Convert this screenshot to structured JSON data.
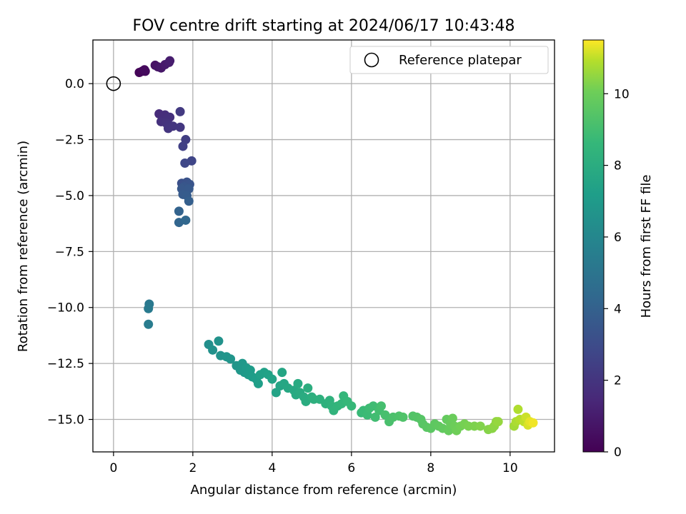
{
  "chart_data": {
    "type": "scatter",
    "title": "FOV centre drift starting at 2024/06/17 10:43:48",
    "xlabel": "Angular distance from reference (arcmin)",
    "ylabel": "Rotation from reference (arcmin)",
    "xlim": [
      -0.52,
      11.12
    ],
    "ylim": [
      -16.45,
      1.95
    ],
    "xticks": [
      0,
      2,
      4,
      6,
      8,
      10
    ],
    "xtick_labels": [
      "0",
      "2",
      "4",
      "6",
      "8",
      "10"
    ],
    "yticks": [
      0,
      -2.5,
      -5,
      -7.5,
      -10,
      -12.5,
      -15
    ],
    "ytick_labels": [
      "0.0",
      "−2.5",
      "−5.0",
      "−7.5",
      "−10.0",
      "−12.5",
      "−15.0"
    ],
    "grid": true,
    "legend": {
      "position": "top-right",
      "entries": [
        {
          "label": "Reference platepar",
          "marker": "open-circle"
        }
      ]
    },
    "reference_point": {
      "x": 0,
      "y": 0
    },
    "colorbar": {
      "label": "Hours from first FF file",
      "colormap": "viridis",
      "range": [
        0,
        11.5
      ],
      "ticks": [
        0,
        2,
        4,
        6,
        8,
        10
      ],
      "tick_labels": [
        "0",
        "2",
        "4",
        "6",
        "8",
        "10"
      ]
    },
    "points": [
      {
        "x": 0.65,
        "y": 0.5,
        "t": 0.1
      },
      {
        "x": 0.72,
        "y": 0.55,
        "t": 0.2
      },
      {
        "x": 0.8,
        "y": 0.55,
        "t": 0.3
      },
      {
        "x": 0.78,
        "y": 0.62,
        "t": 0.35
      },
      {
        "x": 1.05,
        "y": 0.82,
        "t": 0.6
      },
      {
        "x": 1.12,
        "y": 0.75,
        "t": 0.7
      },
      {
        "x": 1.2,
        "y": 0.7,
        "t": 0.8
      },
      {
        "x": 1.3,
        "y": 0.85,
        "t": 0.9
      },
      {
        "x": 1.4,
        "y": 0.95,
        "t": 1.0
      },
      {
        "x": 1.42,
        "y": 1.02,
        "t": 1.05
      },
      {
        "x": 1.15,
        "y": -1.35,
        "t": 1.6
      },
      {
        "x": 1.25,
        "y": -1.45,
        "t": 1.65
      },
      {
        "x": 1.3,
        "y": -1.4,
        "t": 1.7
      },
      {
        "x": 1.35,
        "y": -1.55,
        "t": 1.75
      },
      {
        "x": 1.42,
        "y": -1.5,
        "t": 1.8
      },
      {
        "x": 1.2,
        "y": -1.7,
        "t": 1.85
      },
      {
        "x": 1.32,
        "y": -1.75,
        "t": 1.9
      },
      {
        "x": 1.4,
        "y": -1.85,
        "t": 1.95
      },
      {
        "x": 1.38,
        "y": -2.0,
        "t": 2.0
      },
      {
        "x": 1.5,
        "y": -1.9,
        "t": 2.05
      },
      {
        "x": 1.68,
        "y": -1.95,
        "t": 2.1
      },
      {
        "x": 1.68,
        "y": -1.25,
        "t": 2.2
      },
      {
        "x": 1.82,
        "y": -2.5,
        "t": 2.4
      },
      {
        "x": 1.75,
        "y": -2.8,
        "t": 2.5
      },
      {
        "x": 1.97,
        "y": -3.45,
        "t": 2.7
      },
      {
        "x": 1.8,
        "y": -3.55,
        "t": 2.8
      },
      {
        "x": 1.72,
        "y": -4.45,
        "t": 3.2
      },
      {
        "x": 1.85,
        "y": -4.4,
        "t": 3.3
      },
      {
        "x": 1.92,
        "y": -4.5,
        "t": 3.4
      },
      {
        "x": 1.78,
        "y": -4.6,
        "t": 3.5
      },
      {
        "x": 1.72,
        "y": -4.7,
        "t": 3.55
      },
      {
        "x": 1.9,
        "y": -4.7,
        "t": 3.6
      },
      {
        "x": 1.75,
        "y": -4.95,
        "t": 3.7
      },
      {
        "x": 1.85,
        "y": -5.0,
        "t": 3.75
      },
      {
        "x": 1.9,
        "y": -5.25,
        "t": 3.9
      },
      {
        "x": 1.65,
        "y": -5.7,
        "t": 4.1
      },
      {
        "x": 1.65,
        "y": -6.2,
        "t": 4.2
      },
      {
        "x": 1.82,
        "y": -6.1,
        "t": 4.3
      },
      {
        "x": 0.9,
        "y": -9.85,
        "t": 5.2
      },
      {
        "x": 0.88,
        "y": -10.05,
        "t": 5.3
      },
      {
        "x": 0.88,
        "y": -10.75,
        "t": 5.4
      },
      {
        "x": 2.4,
        "y": -11.65,
        "t": 6.4
      },
      {
        "x": 2.5,
        "y": -11.9,
        "t": 6.5
      },
      {
        "x": 2.65,
        "y": -11.5,
        "t": 6.55
      },
      {
        "x": 2.7,
        "y": -12.15,
        "t": 6.6
      },
      {
        "x": 2.85,
        "y": -12.2,
        "t": 6.7
      },
      {
        "x": 2.95,
        "y": -12.3,
        "t": 6.75
      },
      {
        "x": 3.1,
        "y": -12.6,
        "t": 6.8
      },
      {
        "x": 3.2,
        "y": -12.8,
        "t": 6.85
      },
      {
        "x": 3.25,
        "y": -12.5,
        "t": 6.9
      },
      {
        "x": 3.3,
        "y": -12.9,
        "t": 6.95
      },
      {
        "x": 3.35,
        "y": -12.7,
        "t": 7.0
      },
      {
        "x": 3.4,
        "y": -13.0,
        "t": 7.05
      },
      {
        "x": 3.45,
        "y": -12.8,
        "t": 7.1
      },
      {
        "x": 3.5,
        "y": -13.1,
        "t": 7.15
      },
      {
        "x": 3.6,
        "y": -13.2,
        "t": 7.2
      },
      {
        "x": 3.65,
        "y": -13.4,
        "t": 7.25
      },
      {
        "x": 3.7,
        "y": -13.0,
        "t": 7.3
      },
      {
        "x": 3.8,
        "y": -12.9,
        "t": 7.35
      },
      {
        "x": 3.9,
        "y": -13.0,
        "t": 7.4
      },
      {
        "x": 4.0,
        "y": -13.2,
        "t": 7.45
      },
      {
        "x": 4.1,
        "y": -13.8,
        "t": 7.5
      },
      {
        "x": 4.2,
        "y": -13.5,
        "t": 7.55
      },
      {
        "x": 4.25,
        "y": -12.9,
        "t": 7.6
      },
      {
        "x": 4.3,
        "y": -13.4,
        "t": 7.65
      },
      {
        "x": 4.4,
        "y": -13.6,
        "t": 7.7
      },
      {
        "x": 4.55,
        "y": -13.7,
        "t": 7.75
      },
      {
        "x": 4.6,
        "y": -13.9,
        "t": 7.8
      },
      {
        "x": 4.65,
        "y": -13.4,
        "t": 7.85
      },
      {
        "x": 4.7,
        "y": -13.8,
        "t": 7.9
      },
      {
        "x": 4.8,
        "y": -14.0,
        "t": 7.95
      },
      {
        "x": 4.85,
        "y": -14.2,
        "t": 8.0
      },
      {
        "x": 4.9,
        "y": -13.6,
        "t": 8.05
      },
      {
        "x": 5.0,
        "y": -14.0,
        "t": 8.1
      },
      {
        "x": 5.05,
        "y": -14.1,
        "t": 8.15
      },
      {
        "x": 5.2,
        "y": -14.1,
        "t": 8.2
      },
      {
        "x": 5.35,
        "y": -14.3,
        "t": 8.25
      },
      {
        "x": 5.45,
        "y": -14.15,
        "t": 8.3
      },
      {
        "x": 5.5,
        "y": -14.4,
        "t": 8.35
      },
      {
        "x": 5.55,
        "y": -14.6,
        "t": 8.4
      },
      {
        "x": 5.65,
        "y": -14.4,
        "t": 8.45
      },
      {
        "x": 5.75,
        "y": -14.3,
        "t": 8.5
      },
      {
        "x": 5.8,
        "y": -13.95,
        "t": 8.55
      },
      {
        "x": 5.9,
        "y": -14.2,
        "t": 8.6
      },
      {
        "x": 6.0,
        "y": -14.4,
        "t": 8.65
      },
      {
        "x": 6.25,
        "y": -14.7,
        "t": 8.7
      },
      {
        "x": 6.3,
        "y": -14.6,
        "t": 8.75
      },
      {
        "x": 6.4,
        "y": -14.8,
        "t": 8.8
      },
      {
        "x": 6.45,
        "y": -14.5,
        "t": 8.85
      },
      {
        "x": 6.55,
        "y": -14.4,
        "t": 8.9
      },
      {
        "x": 6.6,
        "y": -14.9,
        "t": 8.95
      },
      {
        "x": 6.7,
        "y": -14.6,
        "t": 9.0
      },
      {
        "x": 6.75,
        "y": -14.4,
        "t": 9.05
      },
      {
        "x": 6.85,
        "y": -14.8,
        "t": 9.1
      },
      {
        "x": 6.95,
        "y": -15.1,
        "t": 9.15
      },
      {
        "x": 7.05,
        "y": -14.9,
        "t": 9.2
      },
      {
        "x": 7.2,
        "y": -14.85,
        "t": 9.25
      },
      {
        "x": 7.3,
        "y": -14.9,
        "t": 9.3
      },
      {
        "x": 7.55,
        "y": -14.85,
        "t": 9.35
      },
      {
        "x": 7.65,
        "y": -14.9,
        "t": 9.4
      },
      {
        "x": 7.75,
        "y": -15.0,
        "t": 9.45
      },
      {
        "x": 7.8,
        "y": -15.2,
        "t": 9.5
      },
      {
        "x": 7.9,
        "y": -15.35,
        "t": 9.55
      },
      {
        "x": 8.0,
        "y": -15.4,
        "t": 9.6
      },
      {
        "x": 8.1,
        "y": -15.2,
        "t": 9.65
      },
      {
        "x": 8.2,
        "y": -15.3,
        "t": 9.7
      },
      {
        "x": 8.3,
        "y": -15.4,
        "t": 9.75
      },
      {
        "x": 8.4,
        "y": -15.0,
        "t": 9.8
      },
      {
        "x": 8.45,
        "y": -15.5,
        "t": 9.85
      },
      {
        "x": 8.5,
        "y": -15.2,
        "t": 9.9
      },
      {
        "x": 8.55,
        "y": -14.95,
        "t": 9.95
      },
      {
        "x": 8.6,
        "y": -15.3,
        "t": 10.0
      },
      {
        "x": 8.65,
        "y": -15.5,
        "t": 10.05
      },
      {
        "x": 8.75,
        "y": -15.3,
        "t": 10.1
      },
      {
        "x": 8.85,
        "y": -15.2,
        "t": 10.15
      },
      {
        "x": 8.95,
        "y": -15.3,
        "t": 10.2
      },
      {
        "x": 9.1,
        "y": -15.3,
        "t": 10.25
      },
      {
        "x": 9.25,
        "y": -15.3,
        "t": 10.3
      },
      {
        "x": 9.45,
        "y": -15.45,
        "t": 10.35
      },
      {
        "x": 9.55,
        "y": -15.4,
        "t": 10.4
      },
      {
        "x": 9.6,
        "y": -15.3,
        "t": 10.45
      },
      {
        "x": 9.65,
        "y": -15.1,
        "t": 10.5
      },
      {
        "x": 9.7,
        "y": -15.1,
        "t": 10.55
      },
      {
        "x": 10.1,
        "y": -15.3,
        "t": 10.7
      },
      {
        "x": 10.15,
        "y": -15.1,
        "t": 10.8
      },
      {
        "x": 10.2,
        "y": -14.55,
        "t": 10.85
      },
      {
        "x": 10.25,
        "y": -15.0,
        "t": 10.9
      },
      {
        "x": 10.35,
        "y": -15.1,
        "t": 11.0
      },
      {
        "x": 10.4,
        "y": -14.9,
        "t": 11.1
      },
      {
        "x": 10.45,
        "y": -15.25,
        "t": 11.2
      },
      {
        "x": 10.5,
        "y": -15.1,
        "t": 11.3
      },
      {
        "x": 10.58,
        "y": -15.15,
        "t": 11.4
      }
    ]
  }
}
